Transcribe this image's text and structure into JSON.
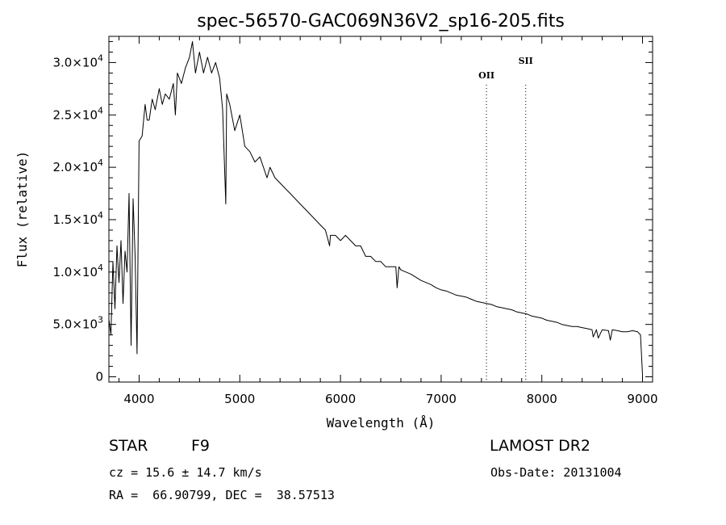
{
  "chart_data": {
    "type": "line",
    "title": "spec-56570-GAC069N36V2_sp16-205.fits",
    "xlabel": "Wavelength (Å)",
    "ylabel": "Flux (relative)",
    "xlim": [
      3700,
      9100
    ],
    "ylim": [
      -500,
      32500
    ],
    "x_ticks": [
      4000,
      5000,
      6000,
      7000,
      8000,
      9000
    ],
    "x_tick_labels": [
      "4000",
      "5000",
      "6000",
      "7000",
      "8000",
      "9000"
    ],
    "y_ticks": [
      {
        "value": 0,
        "mantissa": "0",
        "exponent": ""
      },
      {
        "value": 5000,
        "mantissa": "5.0×10",
        "exponent": "3"
      },
      {
        "value": 10000,
        "mantissa": "1.0×10",
        "exponent": "4"
      },
      {
        "value": 15000,
        "mantissa": "1.5×10",
        "exponent": "4"
      },
      {
        "value": 20000,
        "mantissa": "2.0×10",
        "exponent": "4"
      },
      {
        "value": 25000,
        "mantissa": "2.5×10",
        "exponent": "4"
      },
      {
        "value": 30000,
        "mantissa": "3.0×10",
        "exponent": "4"
      }
    ],
    "series": [
      {
        "x": [
          3700,
          3720,
          3740,
          3760,
          3780,
          3800,
          3820,
          3840,
          3860,
          3880,
          3900,
          3920,
          3940,
          3960,
          3980,
          4000,
          4030,
          4060,
          4080,
          4100,
          4130,
          4160,
          4200,
          4230,
          4260,
          4300,
          4340,
          4360,
          4380,
          4420,
          4460,
          4500,
          4530,
          4560,
          4600,
          4640,
          4680,
          4720,
          4760,
          4800,
          4830,
          4861,
          4870,
          4900,
          4950,
          5000,
          5050,
          5100,
          5150,
          5200,
          5270,
          5300,
          5350,
          5400,
          5450,
          5500,
          5550,
          5600,
          5650,
          5700,
          5750,
          5800,
          5850,
          5892,
          5900,
          5950,
          6000,
          6050,
          6100,
          6150,
          6200,
          6250,
          6300,
          6350,
          6400,
          6450,
          6500,
          6550,
          6563,
          6580,
          6600,
          6650,
          6700,
          6750,
          6800,
          6850,
          6900,
          6950,
          7000,
          7050,
          7100,
          7150,
          7200,
          7250,
          7300,
          7350,
          7400,
          7450,
          7500,
          7550,
          7600,
          7650,
          7700,
          7750,
          7800,
          7850,
          7900,
          7950,
          8000,
          8050,
          8100,
          8150,
          8200,
          8250,
          8300,
          8350,
          8400,
          8450,
          8498,
          8510,
          8542,
          8560,
          8600,
          8662,
          8680,
          8700,
          8750,
          8800,
          8850,
          8900,
          8950,
          8980,
          9000
        ],
        "y": [
          5500,
          4000,
          11000,
          6500,
          12500,
          9000,
          13000,
          7000,
          12000,
          10000,
          17500,
          3000,
          17000,
          11500,
          2200,
          22500,
          23000,
          26000,
          24500,
          24500,
          26500,
          25500,
          27500,
          26000,
          27000,
          26500,
          28000,
          25000,
          29000,
          28000,
          29500,
          30500,
          32000,
          29000,
          31000,
          29000,
          30500,
          29000,
          30000,
          28500,
          25500,
          16500,
          27000,
          26000,
          23500,
          25000,
          22000,
          21500,
          20500,
          21000,
          19000,
          20000,
          19000,
          18500,
          18000,
          17500,
          17000,
          16500,
          16000,
          15500,
          15000,
          14500,
          14000,
          12500,
          13500,
          13500,
          13000,
          13500,
          13000,
          12500,
          12500,
          11500,
          11500,
          11000,
          11000,
          10500,
          10500,
          10500,
          8500,
          10500,
          10200,
          10000,
          9800,
          9500,
          9200,
          9000,
          8800,
          8500,
          8300,
          8200,
          8000,
          7800,
          7700,
          7600,
          7400,
          7200,
          7100,
          7000,
          6900,
          6700,
          6600,
          6500,
          6400,
          6200,
          6100,
          6000,
          5800,
          5700,
          5600,
          5400,
          5300,
          5200,
          5000,
          4900,
          4800,
          4800,
          4700,
          4600,
          4500,
          3800,
          4500,
          3700,
          4500,
          4400,
          3500,
          4500,
          4400,
          4300,
          4300,
          4400,
          4300,
          4000,
          200
        ]
      }
    ],
    "vlines": [
      {
        "x": 7450,
        "label": "OII"
      },
      {
        "x": 7840,
        "label": "SII"
      }
    ]
  },
  "info": {
    "object_class": "STAR",
    "subclass": "F9",
    "survey": "LAMOST DR2",
    "redshift": "cz = 15.6 ± 14.7 km/s",
    "obs_date": "Obs-Date: 20131004",
    "coords": "RA =  66.90799, DEC =  38.57513"
  }
}
